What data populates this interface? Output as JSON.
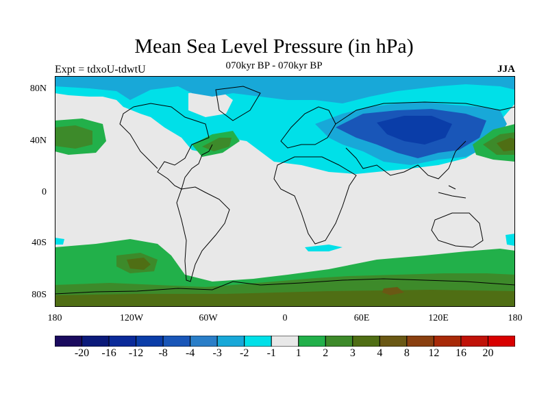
{
  "title": "Mean Sea Level Pressure (in hPa)",
  "subtitle": "070kyr BP - 070kyr BP",
  "left_label": "Expt = tdxoU-tdwtU",
  "right_label": "JJA",
  "lat_ticks": [
    "80N",
    "40N",
    "0",
    "40S",
    "80S"
  ],
  "lon_ticks": [
    "180",
    "120W",
    "60W",
    "0",
    "60E",
    "120E",
    "180"
  ],
  "colorbar": {
    "colors": [
      "#1a0a5e",
      "#0b1a7a",
      "#0a2a99",
      "#0a3da8",
      "#1956b8",
      "#2a7ec8",
      "#18a8d8",
      "#00e0e8",
      "#e8e8e8",
      "#22b04a",
      "#3d8a2a",
      "#4f6e14",
      "#6a5814",
      "#8a4010",
      "#a82a08",
      "#c01208",
      "#d80000"
    ],
    "labels": [
      "-20",
      "-16",
      "-12",
      "-8",
      "-4",
      "-3",
      "-2",
      "-1",
      "1",
      "2",
      "3",
      "4",
      "8",
      "12",
      "16",
      "20"
    ]
  },
  "colors": {
    "background": "#e8e8e8",
    "cyan": "#00e0e8",
    "light_blue": "#18a8d8",
    "mid_blue": "#1956b8",
    "dark_blue": "#0a3da8",
    "green": "#22b04a",
    "dark_green": "#3d8a2a",
    "olive": "#4f6e14",
    "brown": "#6a5814"
  }
}
